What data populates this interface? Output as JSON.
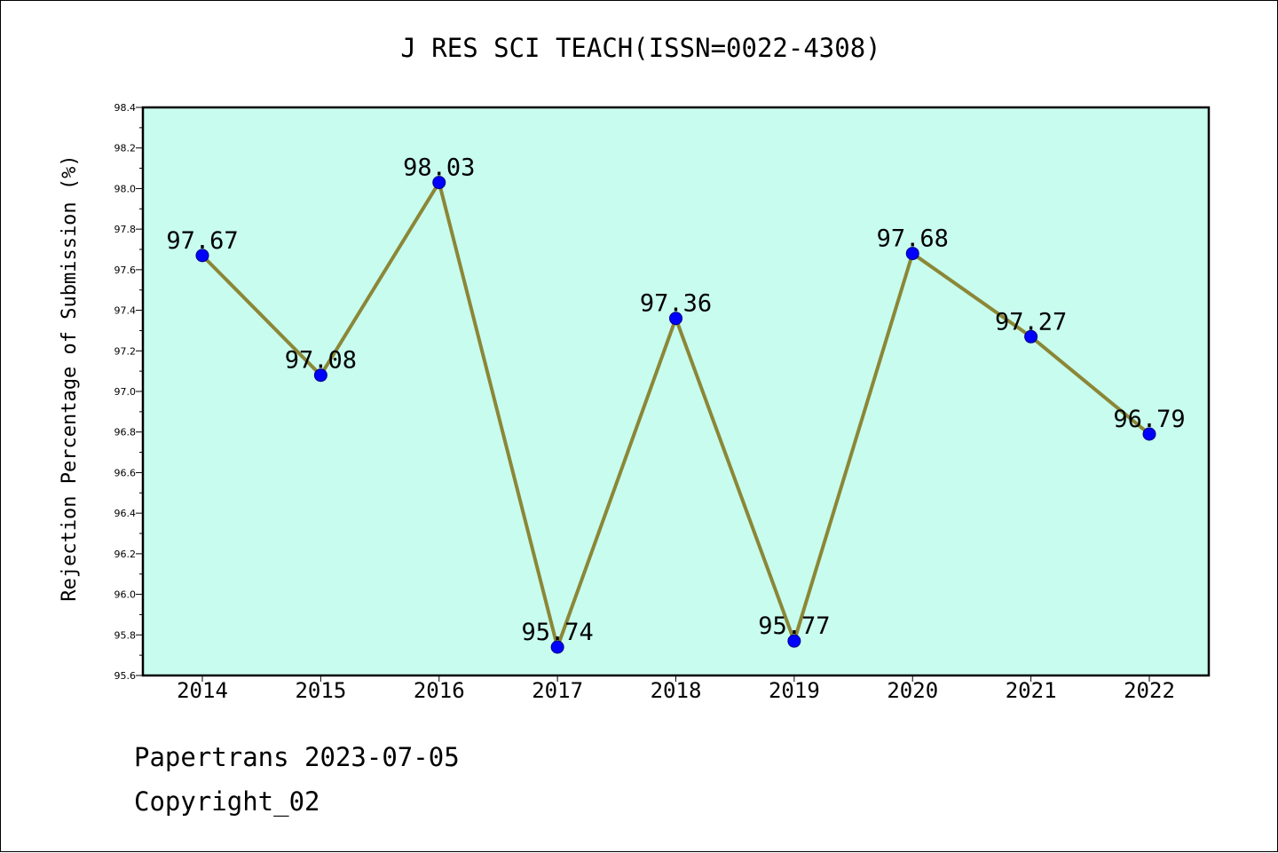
{
  "colors": {
    "plot_background": "#c8fcee",
    "line": "#8b8737",
    "marker": "#0000ff",
    "axis": "#000000"
  },
  "chart_data": {
    "type": "line",
    "title": "J RES SCI TEACH(ISSN=0022-4308)",
    "xlabel": "",
    "ylabel": "Rejection Percentage of Submission (%)",
    "categories": [
      "2014",
      "2015",
      "2016",
      "2017",
      "2018",
      "2019",
      "2020",
      "2021",
      "2022"
    ],
    "series": [
      {
        "values": [
          97.67,
          97.08,
          98.03,
          95.74,
          97.36,
          95.77,
          97.68,
          97.27,
          96.79
        ],
        "labels": [
          "97.67",
          "97.08",
          "98.03",
          "95.74",
          "97.36",
          "95.77",
          "97.68",
          "97.27",
          "96.79"
        ]
      }
    ],
    "ylim": [
      95.6,
      98.4
    ],
    "yticks": [
      "95.6",
      "95.8",
      "96.0",
      "96.2",
      "96.4",
      "96.6",
      "96.8",
      "97.0",
      "97.2",
      "97.4",
      "97.6",
      "97.8",
      "98.0",
      "98.2",
      "98.4"
    ],
    "grid": false,
    "legend": "none"
  },
  "footer": {
    "line1": "Papertrans 2023-07-05",
    "line2": "Copyright_02"
  }
}
